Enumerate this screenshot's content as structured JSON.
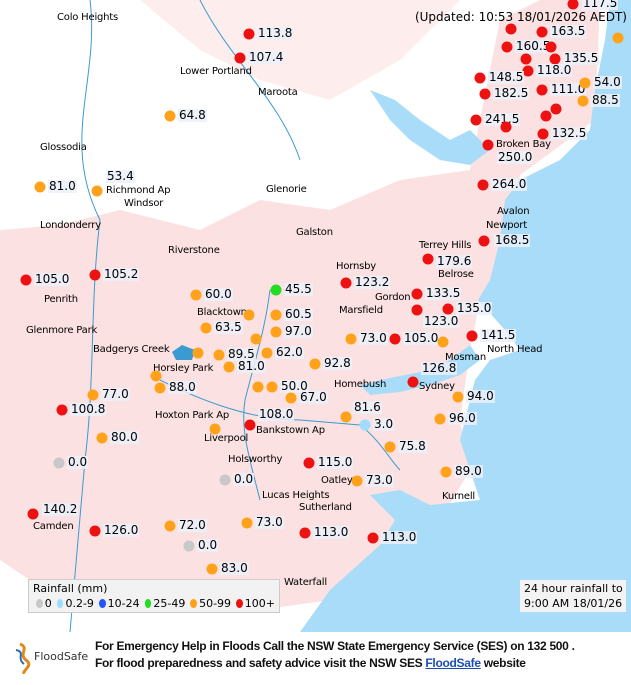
{
  "updated": "(Updated: 10:53 18/01/2026 AEDT)",
  "colors": {
    "0": "#c8c8c8",
    "0.2-9": "#9fdcff",
    "10-24": "#2255ff",
    "25-49": "#22dd22",
    "50-99": "#ffa21a",
    "100+": "#ee1111",
    "sea": "#a8dcf8",
    "urban": "#fbe1e1",
    "river": "#3a9bd0"
  },
  "places": [
    "Colo Heights",
    "Lower Portland",
    "Maroota",
    "Glossodia",
    "Richmond Ap",
    "Windsor",
    "Glenorie",
    "Londonderry",
    "Galston",
    "Riverstone",
    "Terrey Hills",
    "Avalon",
    "Newport",
    "Hornsby",
    "Belrose",
    "Penrith",
    "Gordon",
    "Marsfield",
    "Glenmore Park",
    "Blacktown",
    "Badgerys Creek",
    "Mosman",
    "North Head",
    "Horsley Park",
    "Homebush",
    "Sydney",
    "Hoxton Park Ap",
    "Bankstown Ap",
    "Liverpool",
    "Holsworthy",
    "Lucas Heights",
    "Oatley",
    "Kurnell",
    "Sutherland",
    "Camden",
    "Broken Bay",
    "Waterfall"
  ],
  "stations": [
    {
      "value": "117.5",
      "cat": "100+"
    },
    {
      "value": "113.8",
      "cat": "100+"
    },
    {
      "value": "107.4",
      "cat": "100+"
    },
    {
      "value": "",
      "cat": "100+"
    },
    {
      "value": "163.5",
      "cat": "100+"
    },
    {
      "value": "160.5",
      "cat": "100+"
    },
    {
      "value": "",
      "cat": "100+"
    },
    {
      "value": "135.5",
      "cat": "100+"
    },
    {
      "value": "",
      "cat": "100+"
    },
    {
      "value": "118.0",
      "cat": "100+"
    },
    {
      "value": "148.5",
      "cat": "100+"
    },
    {
      "value": "182.5",
      "cat": "100+"
    },
    {
      "value": "111.0",
      "cat": "100+"
    },
    {
      "value": "54.0",
      "cat": "50-99"
    },
    {
      "value": "88.5",
      "cat": "50-99"
    },
    {
      "value": "",
      "cat": "50-99"
    },
    {
      "value": "",
      "cat": "100+"
    },
    {
      "value": "",
      "cat": "100+"
    },
    {
      "value": "241.5",
      "cat": "100+"
    },
    {
      "value": "",
      "cat": "100+"
    },
    {
      "value": "132.5",
      "cat": "100+"
    },
    {
      "value": "250.0",
      "cat": "100+"
    },
    {
      "value": "64.8",
      "cat": "50-99"
    },
    {
      "value": "81.0",
      "cat": "50-99"
    },
    {
      "value": "53.4",
      "cat": "50-99"
    },
    {
      "value": "264.0",
      "cat": "100+"
    },
    {
      "value": "168.5",
      "cat": "100+"
    },
    {
      "value": "179.6",
      "cat": "100+"
    },
    {
      "value": "123.2",
      "cat": "100+"
    },
    {
      "value": "133.5",
      "cat": "100+"
    },
    {
      "value": "123.0",
      "cat": "100+"
    },
    {
      "value": "135.0",
      "cat": "100+"
    },
    {
      "value": "73.0",
      "cat": "50-99"
    },
    {
      "value": "105.0",
      "cat": "100+"
    },
    {
      "value": "",
      "cat": "50-99"
    },
    {
      "value": "141.5",
      "cat": "100+"
    },
    {
      "value": "92.8",
      "cat": "50-99"
    },
    {
      "value": "126.8",
      "cat": "100+"
    },
    {
      "value": "94.0",
      "cat": "50-99"
    },
    {
      "value": "81.6",
      "cat": "50-99"
    },
    {
      "value": "3.0",
      "cat": "0.2-9"
    },
    {
      "value": "96.0",
      "cat": "50-99"
    },
    {
      "value": "75.8",
      "cat": "50-99"
    },
    {
      "value": "115.0",
      "cat": "100+"
    },
    {
      "value": "89.0",
      "cat": "50-99"
    },
    {
      "value": "73.0",
      "cat": "50-99"
    },
    {
      "value": "105.0",
      "cat": "100+"
    },
    {
      "value": "105.2",
      "cat": "100+"
    },
    {
      "value": "60.0",
      "cat": "50-99"
    },
    {
      "value": "45.5",
      "cat": "25-49"
    },
    {
      "value": "",
      "cat": "50-99"
    },
    {
      "value": "60.5",
      "cat": "50-99"
    },
    {
      "value": "63.5",
      "cat": "50-99"
    },
    {
      "value": "97.0",
      "cat": "50-99"
    },
    {
      "value": "",
      "cat": "50-99"
    },
    {
      "value": "89.5",
      "cat": "50-99"
    },
    {
      "value": "",
      "cat": "50-99"
    },
    {
      "value": "62.0",
      "cat": "50-99"
    },
    {
      "value": "81.0",
      "cat": "50-99"
    },
    {
      "value": "",
      "cat": "50-99"
    },
    {
      "value": "88.0",
      "cat": "50-99"
    },
    {
      "value": "50.0",
      "cat": "50-99"
    },
    {
      "value": "",
      "cat": "50-99"
    },
    {
      "value": "67.0",
      "cat": "50-99"
    },
    {
      "value": "77.0",
      "cat": "50-99"
    },
    {
      "value": "100.8",
      "cat": "100+"
    },
    {
      "value": "108.0",
      "cat": "100+"
    },
    {
      "value": "",
      "cat": "50-99"
    },
    {
      "value": "80.0",
      "cat": "50-99"
    },
    {
      "value": "0.0",
      "cat": "0"
    },
    {
      "value": "0.0",
      "cat": "0"
    },
    {
      "value": "140.2",
      "cat": "100+"
    },
    {
      "value": "126.0",
      "cat": "100+"
    },
    {
      "value": "72.0",
      "cat": "50-99"
    },
    {
      "value": "0.0",
      "cat": "0"
    },
    {
      "value": "73.0",
      "cat": "50-99"
    },
    {
      "value": "113.0",
      "cat": "100+"
    },
    {
      "value": "113.0",
      "cat": "100+"
    },
    {
      "value": "83.0",
      "cat": "50-99"
    }
  ],
  "legend": {
    "title": "Rainfall (mm)",
    "items": [
      {
        "label": "0",
        "cat": "0"
      },
      {
        "label": "0.2-9",
        "cat": "0.2-9"
      },
      {
        "label": "10-24",
        "cat": "10-24"
      },
      {
        "label": "25-49",
        "cat": "25-49"
      },
      {
        "label": "50-99",
        "cat": "50-99"
      },
      {
        "label": "100+",
        "cat": "100+"
      }
    ]
  },
  "period": {
    "line1": "24 hour rainfall to",
    "line2": "9:00 AM 18/01/26"
  },
  "footer": {
    "logo_text": "FloodSafe",
    "line1": "For Emergency Help in Floods Call the NSW State Emergency Service (SES) on 132 500 .",
    "line2_pre": "For flood preparedness and safety advice visit the NSW SES ",
    "line2_link": "FloodSafe",
    "line2_post": " website"
  }
}
